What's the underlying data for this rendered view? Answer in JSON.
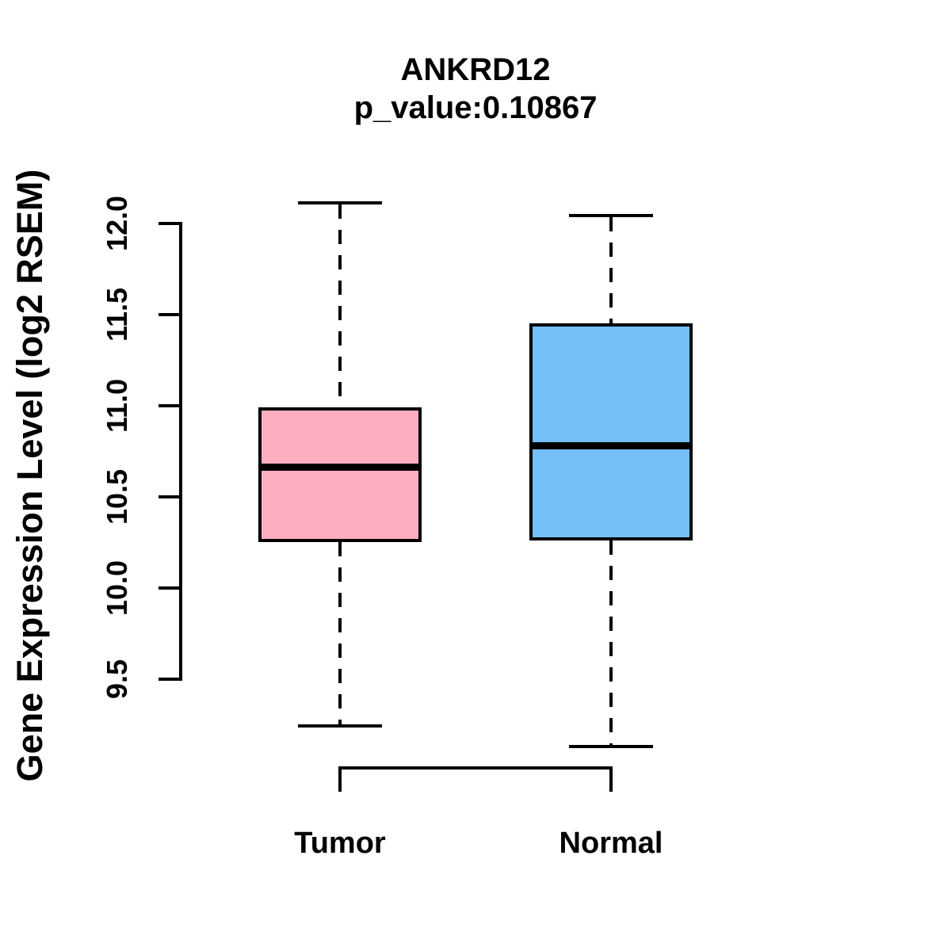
{
  "figure": {
    "title": "ANKRD12",
    "subtitle": "p_value:0.10867",
    "y_axis_label": "Gene Expression Level (log2 RSEM)"
  },
  "chart_data": {
    "type": "boxplot",
    "title": "ANKRD12",
    "subtitle": "p_value:0.10867",
    "ylabel": "Gene Expression Level (log2 RSEM)",
    "xlabel": "",
    "ylim": [
      9.5,
      12.0
    ],
    "yticks": [
      9.5,
      10.0,
      10.5,
      11.0,
      11.5,
      12.0
    ],
    "ytick_labels": [
      "9.5",
      "10.0",
      "10.5",
      "11.0",
      "11.5",
      "12.0"
    ],
    "grid": false,
    "legend": "none",
    "categories": [
      "Tumor",
      "Normal"
    ],
    "series": [
      {
        "name": "Tumor",
        "fill_color": "#FFAEC1",
        "whisker_low": 9.24,
        "q1": 10.25,
        "median": 10.66,
        "q3": 10.99,
        "whisker_high": 12.11
      },
      {
        "name": "Normal",
        "fill_color": "#74BFF8",
        "whisker_low": 9.13,
        "q1": 10.26,
        "median": 10.78,
        "q3": 11.45,
        "whisker_high": 12.04
      }
    ]
  },
  "colors": {
    "line": "#000000",
    "background": "#FFFFFF",
    "tumor_fill": "#FFAEC1",
    "normal_fill": "#74BFF8"
  }
}
